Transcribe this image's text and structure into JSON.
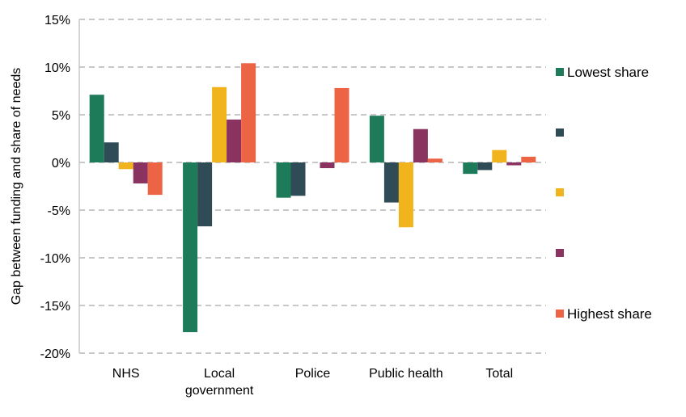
{
  "chart_data": {
    "type": "bar",
    "ylabel": "Gap between funding and share of needs",
    "xlabel": "",
    "ylim": [
      -20,
      15
    ],
    "yticks": [
      15,
      10,
      5,
      0,
      -5,
      -10,
      -15,
      -20
    ],
    "ytick_labels": [
      "15%",
      "10%",
      "5%",
      "0%",
      "-5%",
      "-10%",
      "-15%",
      "-20%"
    ],
    "categories": [
      [
        "NHS"
      ],
      [
        "Local",
        "government"
      ],
      [
        "Police"
      ],
      [
        "Public health"
      ],
      [
        "Total"
      ]
    ],
    "grid": true,
    "legend_position": "right",
    "series": [
      {
        "name": "Lowest share",
        "color": "#1e7b5a",
        "values": [
          7.1,
          -17.8,
          -3.7,
          4.9,
          -1.2
        ]
      },
      {
        "name": "",
        "color": "#2f4b55",
        "values": [
          2.1,
          -6.7,
          -3.5,
          -4.2,
          -0.8
        ]
      },
      {
        "name": "",
        "color": "#f1b41c",
        "values": [
          -0.7,
          7.9,
          0.0,
          -6.8,
          1.3
        ]
      },
      {
        "name": "",
        "color": "#8a3360",
        "values": [
          -2.2,
          4.5,
          -0.6,
          3.5,
          -0.3
        ]
      },
      {
        "name": "Highest share",
        "color": "#ec6443",
        "values": [
          -3.4,
          10.4,
          7.8,
          0.4,
          0.6
        ]
      }
    ]
  }
}
